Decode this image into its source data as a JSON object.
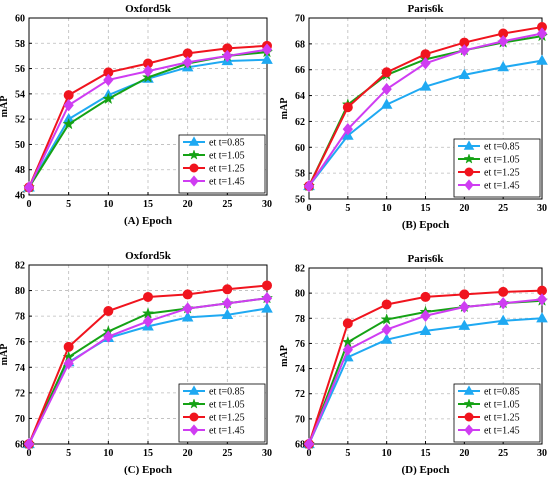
{
  "chart_data": [
    {
      "type": "line",
      "title": "Oxford5k",
      "caption": "(A) Epoch",
      "ylabel": "mAP",
      "x": [
        0,
        5,
        10,
        15,
        20,
        25,
        30
      ],
      "xlim": [
        0,
        30
      ],
      "ylim": [
        46,
        60
      ],
      "xticks": [
        0,
        5,
        10,
        15,
        20,
        25,
        30
      ],
      "yticks": [
        46,
        48,
        50,
        52,
        54,
        56,
        58,
        60
      ],
      "grid": true,
      "legend": "bottom-right",
      "series": [
        {
          "name": "et t=0.85",
          "color": "#1fa9f2",
          "marker": "triangle",
          "values": [
            46.6,
            52.0,
            53.9,
            55.2,
            56.1,
            56.6,
            56.7
          ]
        },
        {
          "name": "et t=1.05",
          "color": "#15a215",
          "marker": "star",
          "values": [
            46.6,
            51.6,
            53.6,
            55.3,
            56.4,
            57.0,
            57.3
          ]
        },
        {
          "name": "et t=1.25",
          "color": "#f0141e",
          "marker": "circle",
          "values": [
            46.6,
            53.9,
            55.7,
            56.4,
            57.2,
            57.6,
            57.8
          ]
        },
        {
          "name": "et t=1.45",
          "color": "#cf3df2",
          "marker": "diamond",
          "values": [
            46.6,
            53.1,
            55.1,
            55.8,
            56.5,
            57.0,
            57.5
          ]
        }
      ]
    },
    {
      "type": "line",
      "title": "Paris6k",
      "caption": "(B) Epoch",
      "ylabel": "mAP",
      "x": [
        0,
        5,
        10,
        15,
        20,
        25,
        30
      ],
      "xlim": [
        0,
        30
      ],
      "ylim": [
        56,
        70
      ],
      "xticks": [
        0,
        5,
        10,
        15,
        20,
        25,
        30
      ],
      "yticks": [
        56,
        58,
        60,
        62,
        64,
        66,
        68,
        70
      ],
      "grid": true,
      "legend": "bottom-right",
      "series": [
        {
          "name": "et t=0.85",
          "color": "#1fa9f2",
          "marker": "triangle",
          "values": [
            57.0,
            60.9,
            63.3,
            64.7,
            65.6,
            66.2,
            66.7
          ]
        },
        {
          "name": "et t=1.05",
          "color": "#15a215",
          "marker": "star",
          "values": [
            57.0,
            63.3,
            65.6,
            66.8,
            67.5,
            68.1,
            68.6
          ]
        },
        {
          "name": "et t=1.25",
          "color": "#f0141e",
          "marker": "circle",
          "values": [
            57.0,
            63.1,
            65.8,
            67.2,
            68.1,
            68.8,
            69.3
          ]
        },
        {
          "name": "et t=1.45",
          "color": "#cf3df2",
          "marker": "diamond",
          "values": [
            57.0,
            61.4,
            64.5,
            66.5,
            67.5,
            68.2,
            68.8
          ]
        }
      ]
    },
    {
      "type": "line",
      "title": "Oxford5k",
      "caption": "(C) Epoch",
      "ylabel": "mAP",
      "x": [
        0,
        5,
        10,
        15,
        20,
        25,
        30
      ],
      "xlim": [
        0,
        30
      ],
      "ylim": [
        68,
        82
      ],
      "xticks": [
        0,
        5,
        10,
        15,
        20,
        25,
        30
      ],
      "yticks": [
        68,
        70,
        72,
        74,
        76,
        78,
        80,
        82
      ],
      "grid": true,
      "legend": "bottom-right",
      "series": [
        {
          "name": "et t=0.85",
          "color": "#1fa9f2",
          "marker": "triangle",
          "values": [
            68.0,
            74.4,
            76.3,
            77.2,
            77.9,
            78.1,
            78.6
          ]
        },
        {
          "name": "et t=1.05",
          "color": "#15a215",
          "marker": "star",
          "values": [
            68.0,
            74.8,
            76.8,
            78.2,
            78.6,
            79.0,
            79.4
          ]
        },
        {
          "name": "et t=1.25",
          "color": "#f0141e",
          "marker": "circle",
          "values": [
            68.0,
            75.6,
            78.4,
            79.5,
            79.7,
            80.1,
            80.4
          ]
        },
        {
          "name": "et t=1.45",
          "color": "#cf3df2",
          "marker": "diamond",
          "values": [
            68.0,
            74.3,
            76.4,
            77.6,
            78.6,
            79.0,
            79.4
          ]
        }
      ]
    },
    {
      "type": "line",
      "title": "Paris6k",
      "caption": "(D) Epoch",
      "ylabel": "mAP",
      "x": [
        0,
        5,
        10,
        15,
        20,
        25,
        30
      ],
      "xlim": [
        0,
        30
      ],
      "ylim": [
        68,
        82
      ],
      "xticks": [
        0,
        5,
        10,
        15,
        20,
        25,
        30
      ],
      "yticks": [
        68,
        70,
        72,
        74,
        76,
        78,
        80,
        82
      ],
      "grid": true,
      "legend": "bottom-right",
      "series": [
        {
          "name": "et t=0.85",
          "color": "#1fa9f2",
          "marker": "triangle",
          "values": [
            68.0,
            74.9,
            76.3,
            77.0,
            77.4,
            77.8,
            78.0
          ]
        },
        {
          "name": "et t=1.05",
          "color": "#15a215",
          "marker": "star",
          "values": [
            68.0,
            76.1,
            77.9,
            78.5,
            78.9,
            79.2,
            79.4
          ]
        },
        {
          "name": "et t=1.25",
          "color": "#f0141e",
          "marker": "circle",
          "values": [
            68.0,
            77.6,
            79.1,
            79.7,
            79.9,
            80.1,
            80.2
          ]
        },
        {
          "name": "et t=1.45",
          "color": "#cf3df2",
          "marker": "diamond",
          "values": [
            68.0,
            75.5,
            77.1,
            78.2,
            78.9,
            79.2,
            79.5
          ]
        }
      ]
    }
  ]
}
